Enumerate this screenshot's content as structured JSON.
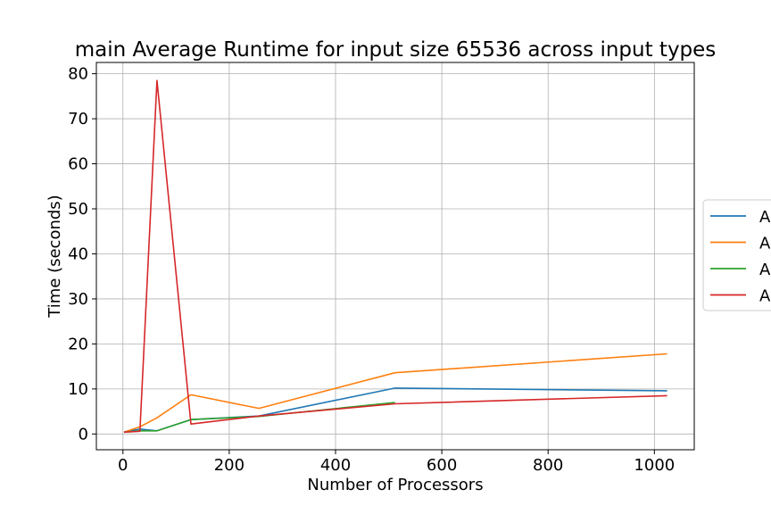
{
  "chart_data": {
    "type": "line",
    "title": "main Average Runtime for input size 65536 across input types",
    "xlabel": "Number of Processors",
    "ylabel": "Time (seconds)",
    "xlim": [
      -50,
      1075
    ],
    "ylim": [
      -3.5,
      82.5
    ],
    "xticks": [
      0,
      200,
      400,
      600,
      800,
      1000
    ],
    "yticks": [
      0,
      10,
      20,
      30,
      40,
      50,
      60,
      70,
      80
    ],
    "grid": true,
    "legend_placement": "center-right-outside",
    "series": [
      {
        "name": "A",
        "color": "#1f77b4",
        "x": [
          2,
          32,
          64,
          128,
          256,
          512,
          1024
        ],
        "y": [
          0.4,
          1.1,
          0.7,
          3.2,
          4.0,
          10.2,
          9.6
        ]
      },
      {
        "name": "A",
        "color": "#ff7f0e",
        "x": [
          2,
          32,
          64,
          128,
          256,
          512,
          1024
        ],
        "y": [
          0.4,
          1.6,
          3.6,
          8.7,
          5.7,
          13.6,
          17.8
        ]
      },
      {
        "name": "A",
        "color": "#2ca02c",
        "x": [
          2,
          32,
          64,
          128,
          256,
          512
        ],
        "y": [
          0.4,
          0.7,
          0.7,
          3.2,
          3.9,
          7.0
        ]
      },
      {
        "name": "A",
        "color": "#d62728",
        "x": [
          2,
          32,
          64,
          128,
          256,
          512,
          1024
        ],
        "y": [
          0.4,
          0.6,
          78.5,
          2.2,
          4.0,
          6.7,
          8.5
        ]
      }
    ]
  }
}
